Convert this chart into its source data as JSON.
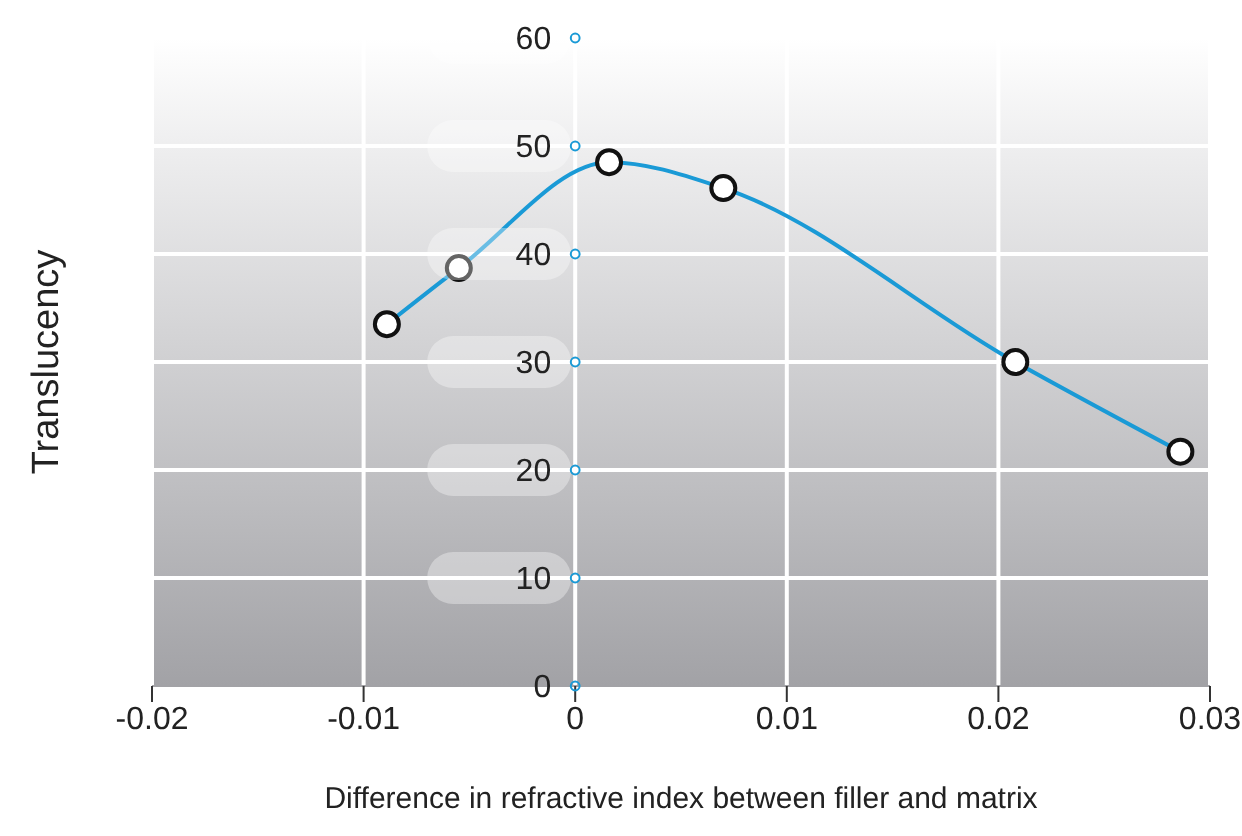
{
  "chart_data": {
    "type": "line",
    "xlabel": "Difference in refractive index between filler and matrix",
    "ylabel": "Translucency",
    "x": [
      -0.0089,
      -0.0055,
      0.0016,
      0.007,
      0.0208,
      0.0286
    ],
    "series": [
      {
        "color": "#1a9ad6",
        "values": [
          33.5,
          38.7,
          48.5,
          46.1,
          30,
          21.7
        ]
      }
    ],
    "xlim": [
      -0.02,
      0.03
    ],
    "xticks": [
      -0.02,
      -0.01,
      0,
      0.01,
      0.02,
      0.03
    ],
    "ylim": [
      0,
      60
    ],
    "yticks": [
      0,
      10,
      20,
      30,
      40,
      50,
      60
    ],
    "grid": true,
    "marker": "circle",
    "line_style": "solid",
    "legend": false
  }
}
